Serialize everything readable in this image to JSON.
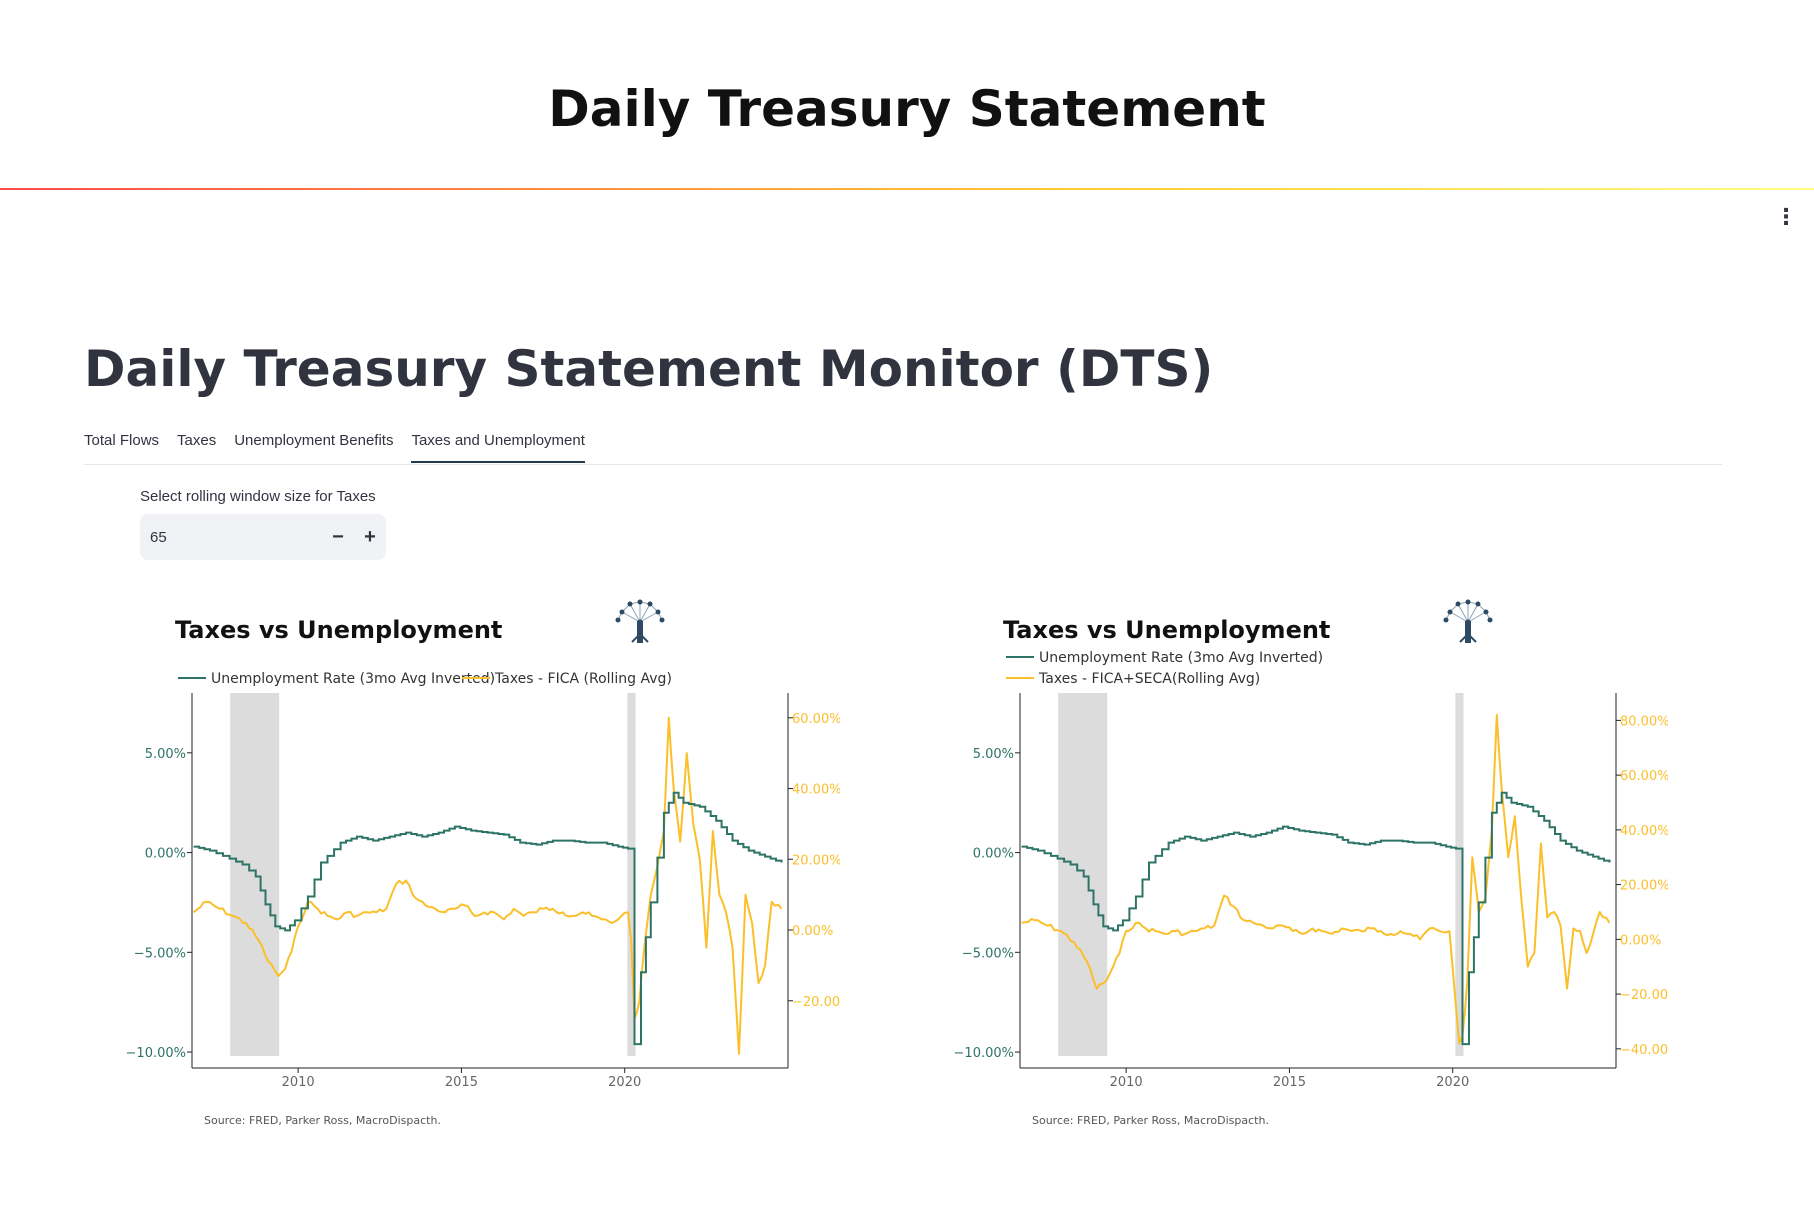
{
  "app_title": "Daily Treasury Statement",
  "page_heading": "Daily Treasury Statement Monitor (DTS)",
  "tabs": [
    {
      "label": "Total Flows",
      "active": false
    },
    {
      "label": "Taxes",
      "active": false
    },
    {
      "label": "Unemployment Benefits",
      "active": false
    },
    {
      "label": "Taxes and Unemployment",
      "active": true
    }
  ],
  "rolling_window": {
    "label": "Select rolling window size for Taxes",
    "value": "65",
    "minus_symbol": "−",
    "plus_symbol": "+"
  },
  "colors": {
    "unemployment": "#2d7466",
    "taxes": "#fbbf2a",
    "recession": "#dcdcdc",
    "accent_line_start": "#ff4b4b",
    "accent_line_end": "#fffd80"
  },
  "icons": {
    "menu": "kebab-menu-icon",
    "logo": "tree-network-logo-icon"
  },
  "chart_data": [
    {
      "type": "line",
      "title": "Taxes vs Unemployment",
      "source_note": "Source: FRED, Parker Ross, MacroDispacth.",
      "legend_placement": "top",
      "legend_layout": "row",
      "x_ticks": [
        "2010",
        "2015",
        "2020"
      ],
      "xlim": [
        2006.75,
        2025.0
      ],
      "recession_bands": [
        [
          2007.92,
          2009.42
        ],
        [
          2020.08,
          2020.33
        ]
      ],
      "y_left": {
        "ticks": [
          "5.00%",
          "0.00%",
          "−5.00%",
          "−10.00%"
        ],
        "tick_values": [
          5,
          0,
          -5,
          -10
        ],
        "ylim": [
          -10.8,
          8.0
        ]
      },
      "y_right": {
        "ticks": [
          "60.00%",
          "40.00%",
          "20.00%",
          "0.00%",
          "−20.00%"
        ],
        "tick_values": [
          60,
          40,
          20,
          0,
          -20
        ],
        "ylim": [
          -39,
          67
        ]
      },
      "series": [
        {
          "name": "Unemployment Rate (3mo Avg Inverted)",
          "axis": "left",
          "color_key": "unemployment",
          "x": [
            2006.8,
            2007.3,
            2007.9,
            2008.3,
            2008.7,
            2009.0,
            2009.3,
            2009.6,
            2009.9,
            2010.3,
            2010.7,
            2011.3,
            2011.8,
            2012.3,
            2012.8,
            2013.3,
            2013.8,
            2014.3,
            2014.8,
            2015.3,
            2015.8,
            2016.3,
            2016.8,
            2017.3,
            2017.8,
            2018.3,
            2018.8,
            2019.3,
            2019.8,
            2020.1,
            2020.3,
            2020.5,
            2020.8,
            2021.2,
            2021.5,
            2021.8,
            2022.3,
            2022.8,
            2023.3,
            2023.8,
            2024.3,
            2024.8
          ],
          "y": [
            0.3,
            0.1,
            -0.3,
            -0.6,
            -1.2,
            -2.6,
            -3.7,
            -3.9,
            -3.4,
            -2.2,
            -0.5,
            0.5,
            0.8,
            0.6,
            0.8,
            1.0,
            0.8,
            1.0,
            1.3,
            1.1,
            1.0,
            0.9,
            0.5,
            0.4,
            0.6,
            0.6,
            0.5,
            0.5,
            0.3,
            0.2,
            -9.6,
            -6.0,
            -2.5,
            2.0,
            3.0,
            2.5,
            2.3,
            1.6,
            0.6,
            0.1,
            -0.2,
            -0.5
          ]
        },
        {
          "name": "Taxes - FICA (Rolling Avg)",
          "axis": "right",
          "color_key": "taxes",
          "x": [
            2006.8,
            2007.2,
            2007.6,
            2008.0,
            2008.4,
            2008.8,
            2009.1,
            2009.4,
            2009.6,
            2009.8,
            2010.0,
            2010.3,
            2010.6,
            2010.9,
            2011.2,
            2011.5,
            2011.8,
            2012.1,
            2012.4,
            2012.7,
            2013.0,
            2013.3,
            2013.6,
            2013.9,
            2014.2,
            2014.5,
            2014.8,
            2015.1,
            2015.4,
            2015.7,
            2016.0,
            2016.3,
            2016.6,
            2016.9,
            2017.2,
            2017.5,
            2017.8,
            2018.1,
            2018.4,
            2018.7,
            2019.0,
            2019.3,
            2019.6,
            2019.9,
            2020.1,
            2020.2,
            2020.3,
            2020.45,
            2020.6,
            2020.8,
            2021.0,
            2021.2,
            2021.35,
            2021.5,
            2021.7,
            2021.9,
            2022.1,
            2022.3,
            2022.5,
            2022.7,
            2022.9,
            2023.1,
            2023.3,
            2023.5,
            2023.7,
            2023.9,
            2024.1,
            2024.3,
            2024.5,
            2024.8
          ],
          "y": [
            5,
            8,
            6,
            4,
            2,
            -3,
            -9,
            -13,
            -11,
            -6,
            1,
            8,
            6,
            4,
            3,
            5,
            4,
            5,
            5,
            6,
            13,
            14,
            9,
            7,
            6,
            5,
            6,
            7,
            4,
            5,
            5,
            3,
            6,
            4,
            5,
            6,
            6,
            5,
            4,
            5,
            4,
            3,
            2,
            4,
            5,
            -3,
            -25,
            -20,
            -5,
            10,
            18,
            28,
            60,
            40,
            25,
            50,
            30,
            20,
            -5,
            28,
            10,
            5,
            -5,
            -35,
            10,
            2,
            -15,
            -10,
            8,
            6
          ]
        },
        {
          "name": "Unemployment Rate (3mo Avg Inverted)",
          "axis": "left",
          "color_key": "unemployment",
          "x": [
            2007.0,
            2008.5,
            2009.5,
            2010.5,
            2011.5,
            2014.0,
            2015.0,
            2017.0,
            2018.5,
            2020.0,
            2020.1,
            2020.3
          ],
          "y": [
            0.3,
            -0.8,
            -3.8,
            -0.8,
            0.8,
            0.9,
            1.2,
            0.6,
            0.5,
            0.3,
            0.2,
            -9.6
          ]
        }
      ]
    },
    {
      "type": "line",
      "title": "Taxes vs Unemployment",
      "source_note": "Source: FRED, Parker Ross, MacroDispacth.",
      "legend_placement": "top",
      "legend_layout": "column",
      "x_ticks": [
        "2010",
        "2015",
        "2020"
      ],
      "xlim": [
        2006.75,
        2025.0
      ],
      "recession_bands": [
        [
          2007.92,
          2009.42
        ],
        [
          2020.08,
          2020.33
        ]
      ],
      "y_left": {
        "ticks": [
          "5.00%",
          "0.00%",
          "−5.00%",
          "−10.00%"
        ],
        "tick_values": [
          5,
          0,
          -5,
          -10
        ],
        "ylim": [
          -10.8,
          8.0
        ]
      },
      "y_right": {
        "ticks": [
          "80.00%",
          "60.00%",
          "40.00%",
          "20.00%",
          "0.00%",
          "−20.00%",
          "−40.00%"
        ],
        "tick_values": [
          80,
          60,
          40,
          20,
          0,
          -20,
          -40
        ],
        "ylim": [
          -47,
          90
        ]
      },
      "series": [
        {
          "name": "Unemployment Rate (3mo Avg Inverted)",
          "axis": "left",
          "color_key": "unemployment",
          "x": [
            2006.8,
            2007.3,
            2007.9,
            2008.3,
            2008.7,
            2009.0,
            2009.3,
            2009.6,
            2009.9,
            2010.3,
            2010.7,
            2011.3,
            2011.8,
            2012.3,
            2012.8,
            2013.3,
            2013.8,
            2014.3,
            2014.8,
            2015.3,
            2015.8,
            2016.3,
            2016.8,
            2017.3,
            2017.8,
            2018.3,
            2018.8,
            2019.3,
            2019.8,
            2020.1,
            2020.3,
            2020.5,
            2020.8,
            2021.2,
            2021.5,
            2021.8,
            2022.3,
            2022.8,
            2023.3,
            2023.8,
            2024.3,
            2024.8
          ],
          "y": [
            0.3,
            0.1,
            -0.3,
            -0.6,
            -1.2,
            -2.6,
            -3.7,
            -3.9,
            -3.4,
            -2.2,
            -0.5,
            0.5,
            0.8,
            0.6,
            0.8,
            1.0,
            0.8,
            1.0,
            1.3,
            1.1,
            1.0,
            0.9,
            0.5,
            0.4,
            0.6,
            0.6,
            0.5,
            0.5,
            0.3,
            0.2,
            -9.6,
            -6.0,
            -2.5,
            2.0,
            3.0,
            2.5,
            2.3,
            1.6,
            0.6,
            0.1,
            -0.2,
            -0.5
          ]
        },
        {
          "name": "Taxes - FICA+SECA(Rolling Avg)",
          "axis": "right",
          "color_key": "taxes",
          "x": [
            2006.8,
            2007.2,
            2007.6,
            2008.0,
            2008.4,
            2008.8,
            2009.1,
            2009.4,
            2009.6,
            2009.8,
            2010.0,
            2010.3,
            2010.6,
            2010.9,
            2011.2,
            2011.5,
            2011.8,
            2012.1,
            2012.4,
            2012.7,
            2013.0,
            2013.3,
            2013.6,
            2013.9,
            2014.2,
            2014.5,
            2014.8,
            2015.1,
            2015.4,
            2015.7,
            2016.0,
            2016.3,
            2016.6,
            2016.9,
            2017.2,
            2017.5,
            2017.8,
            2018.1,
            2018.4,
            2018.7,
            2019.0,
            2019.3,
            2019.6,
            2019.9,
            2020.1,
            2020.2,
            2020.3,
            2020.45,
            2020.6,
            2020.8,
            2021.0,
            2021.2,
            2021.35,
            2021.5,
            2021.7,
            2021.9,
            2022.1,
            2022.3,
            2022.5,
            2022.7,
            2022.9,
            2023.1,
            2023.3,
            2023.5,
            2023.7,
            2023.9,
            2024.1,
            2024.3,
            2024.5,
            2024.8
          ],
          "y": [
            6,
            7,
            5,
            3,
            -1,
            -8,
            -18,
            -15,
            -10,
            -5,
            3,
            6,
            4,
            3,
            2,
            3,
            2,
            3,
            4,
            5,
            16,
            12,
            7,
            6,
            5,
            4,
            5,
            3,
            2,
            4,
            3,
            2,
            4,
            3,
            3,
            4,
            3,
            2,
            3,
            2,
            0,
            4,
            3,
            3,
            -25,
            -38,
            -35,
            -15,
            30,
            10,
            15,
            40,
            82,
            55,
            30,
            45,
            15,
            -10,
            -5,
            35,
            8,
            10,
            5,
            -18,
            4,
            3,
            -5,
            2,
            10,
            6
          ]
        }
      ]
    }
  ]
}
